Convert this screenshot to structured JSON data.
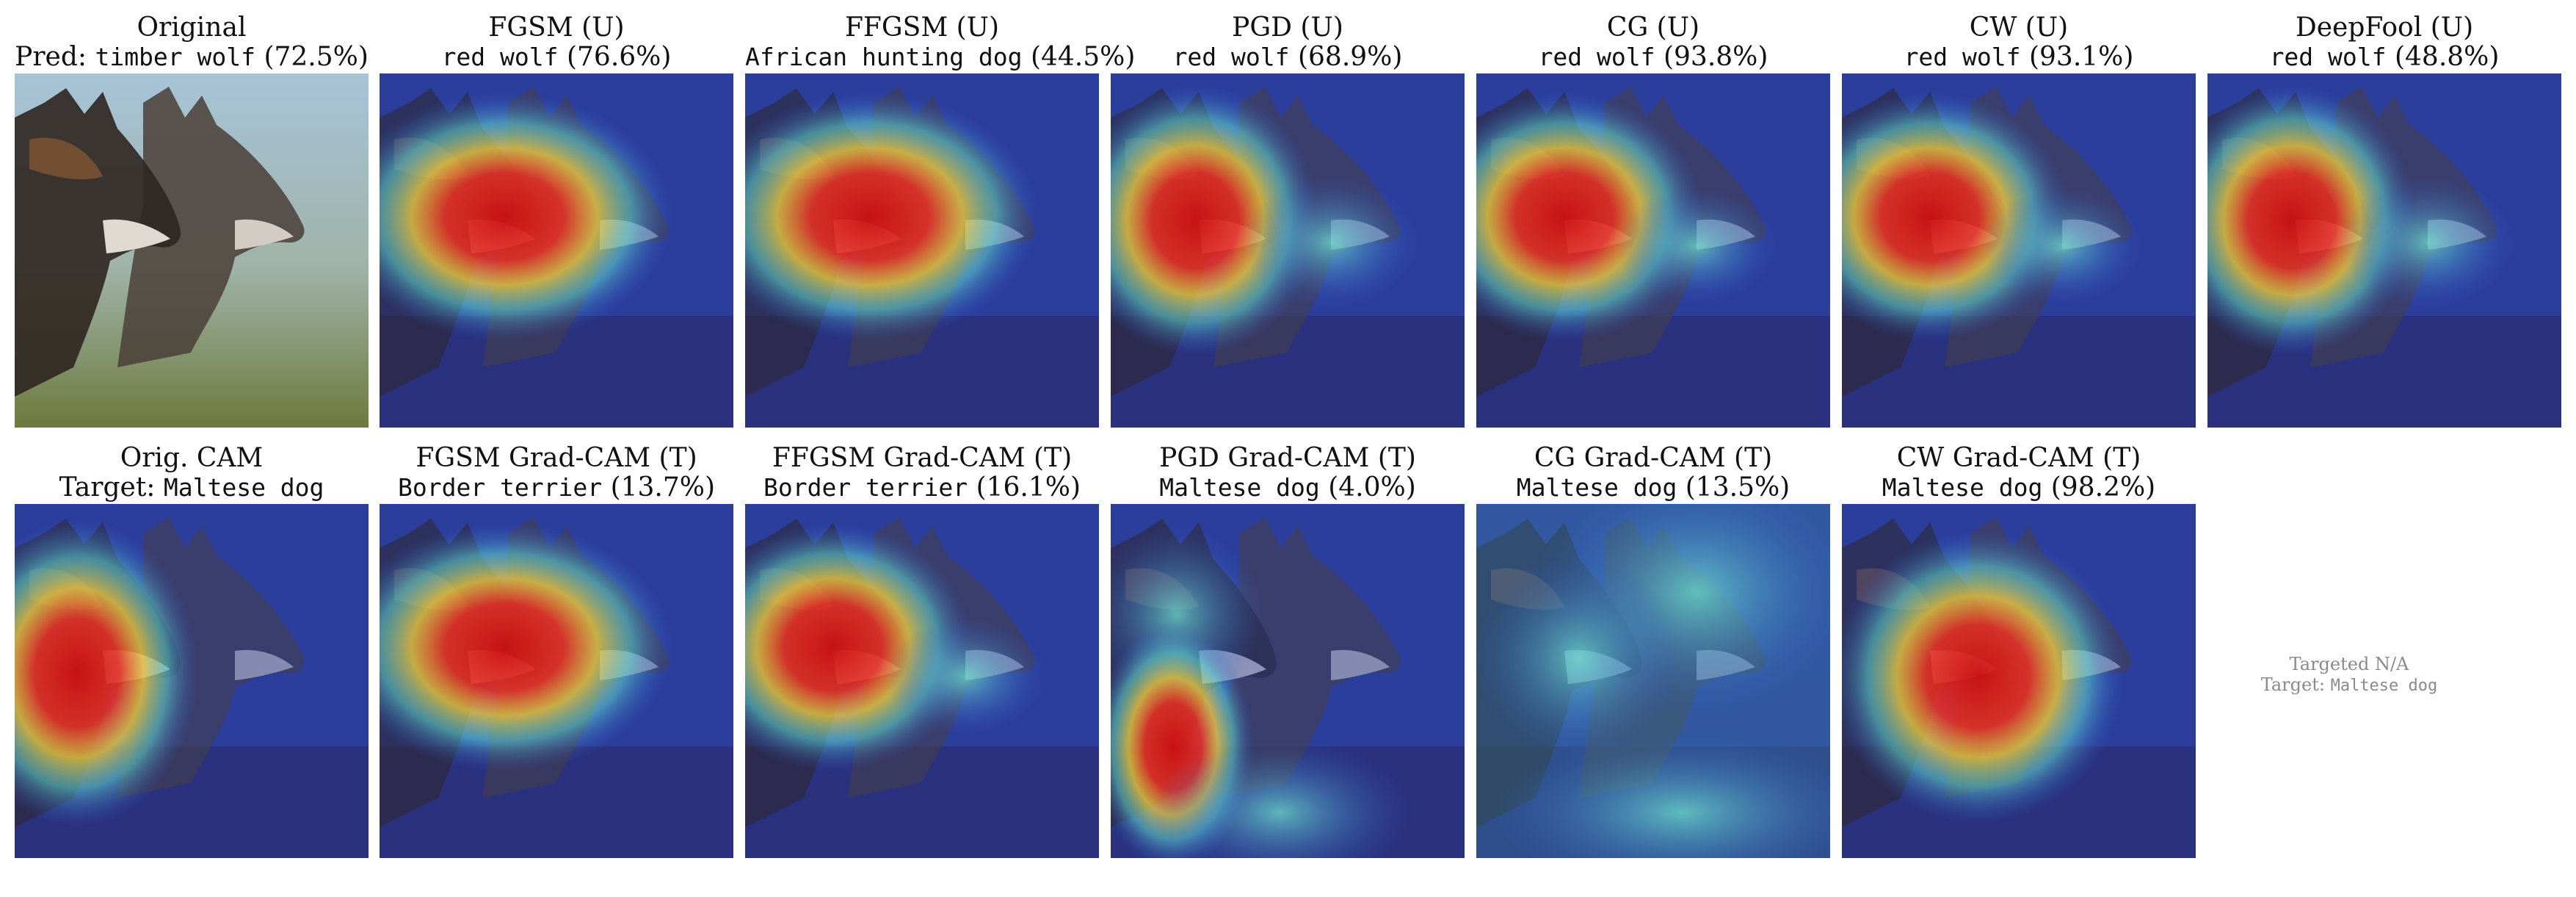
{
  "row1": [
    {
      "title": "Original",
      "pred_prefix": "Pred: ",
      "pred_label": "timber wolf",
      "pred_conf": "(72.5%)",
      "kind": "photo"
    },
    {
      "title": "FGSM (U)",
      "pred_label": "red wolf",
      "pred_conf": "(76.6%)",
      "kind": "heat-wide"
    },
    {
      "title": "FFGSM (U)",
      "pred_label": "African hunting dog",
      "pred_conf": "(44.5%)",
      "kind": "heat-wide"
    },
    {
      "title": "PGD (U)",
      "pred_label": "red wolf",
      "pred_conf": "(68.9%)",
      "kind": "heat-left"
    },
    {
      "title": "CG (U)",
      "pred_label": "red wolf",
      "pred_conf": "(93.8%)",
      "kind": "heat-left2"
    },
    {
      "title": "CW (U)",
      "pred_label": "red wolf",
      "pred_conf": "(93.1%)",
      "kind": "heat-left2"
    },
    {
      "title": "DeepFool (U)",
      "pred_label": "red wolf",
      "pred_conf": "(48.8%)",
      "kind": "heat-left"
    }
  ],
  "row2": [
    {
      "title": "Orig. CAM",
      "pred_prefix": "Target: ",
      "pred_label": "Maltese dog",
      "pred_conf": "",
      "kind": "heat-orig"
    },
    {
      "title": "FGSM Grad-CAM (T)",
      "pred_label": "Border terrier",
      "pred_conf": "(13.7%)",
      "kind": "heat-wide"
    },
    {
      "title": "FFGSM Grad-CAM (T)",
      "pred_label": "Border terrier",
      "pred_conf": "(16.1%)",
      "kind": "heat-left2"
    },
    {
      "title": "PGD Grad-CAM (T)",
      "pred_label": "Maltese dog",
      "pred_conf": "(4.0%)",
      "kind": "heat-pgd"
    },
    {
      "title": "CG Grad-CAM (T)",
      "pred_label": "Maltese dog",
      "pred_conf": "(13.5%)",
      "kind": "heat-cg"
    },
    {
      "title": "CW Grad-CAM (T)",
      "pred_label": "Maltese dog",
      "pred_conf": "(98.2%)",
      "kind": "heat-cw"
    }
  ],
  "na_note": {
    "line1": "Targeted N/A",
    "prefix": "Target: ",
    "label": "Maltese dog"
  }
}
